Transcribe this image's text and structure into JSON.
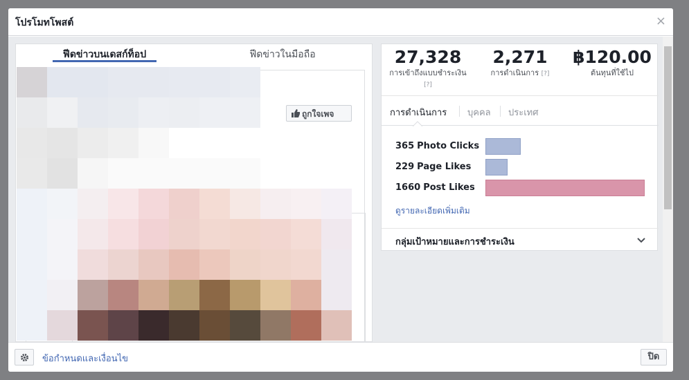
{
  "dialog": {
    "title": "โปรโมทโพสต์",
    "close": "×"
  },
  "preview": {
    "tabs": [
      "ฟีดข่าวบนเดสก์ท็อป",
      "ฟีดข่าวในมือถือ"
    ],
    "like_button": "ถูกใจเพจ"
  },
  "stats": [
    {
      "value": "27,328",
      "label": "การเข้าถึงแบบชำระเงิน",
      "help": "[?]"
    },
    {
      "value": "2,271",
      "label": "การดำเนินการ",
      "help": "[?]"
    },
    {
      "value": "฿120.00",
      "label": "ต้นทุนที่ใช้ไป"
    }
  ],
  "tabs": [
    "การดำเนินการ",
    "บุคคล",
    "ประเทศ"
  ],
  "actions": [
    {
      "count": 365,
      "label": "Photo Clicks",
      "color": "#abb9d8"
    },
    {
      "count": 229,
      "label": "Page Likes",
      "color": "#abb9d8"
    },
    {
      "count": 1660,
      "label": "Post Likes",
      "color": "#d995aa"
    }
  ],
  "more_link": "ดูรายละเอียดเพิ่มเติม",
  "section": "กลุ่มเป้าหมายและการชำระเงิน",
  "footer": {
    "terms": "ข้อกำหนดและเงื่อนไข",
    "close": "ปิด"
  }
}
